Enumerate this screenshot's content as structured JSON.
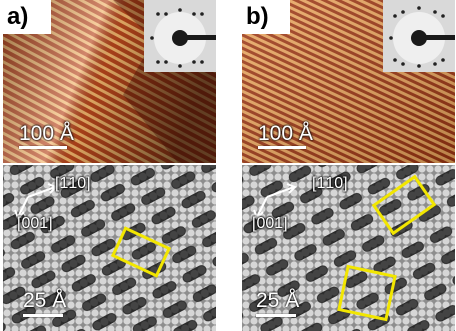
{
  "panels": [
    {
      "label": "a)",
      "stm_scale": "100 Å",
      "dir1": "[1̄10]",
      "dir2": "[001]",
      "model_scale": "25 Å"
    },
    {
      "label": "b)",
      "stm_scale": "100 Å",
      "dir1": "[1̄10]",
      "dir2": "[001]",
      "model_scale": "25 Å"
    }
  ],
  "colors": {
    "highlight": "#f2e600",
    "stm_bright": "#f6d99a",
    "stm_dark": "#6b1a08",
    "molecule": "#2b2b2b",
    "substrate": "#bdbdbd"
  }
}
